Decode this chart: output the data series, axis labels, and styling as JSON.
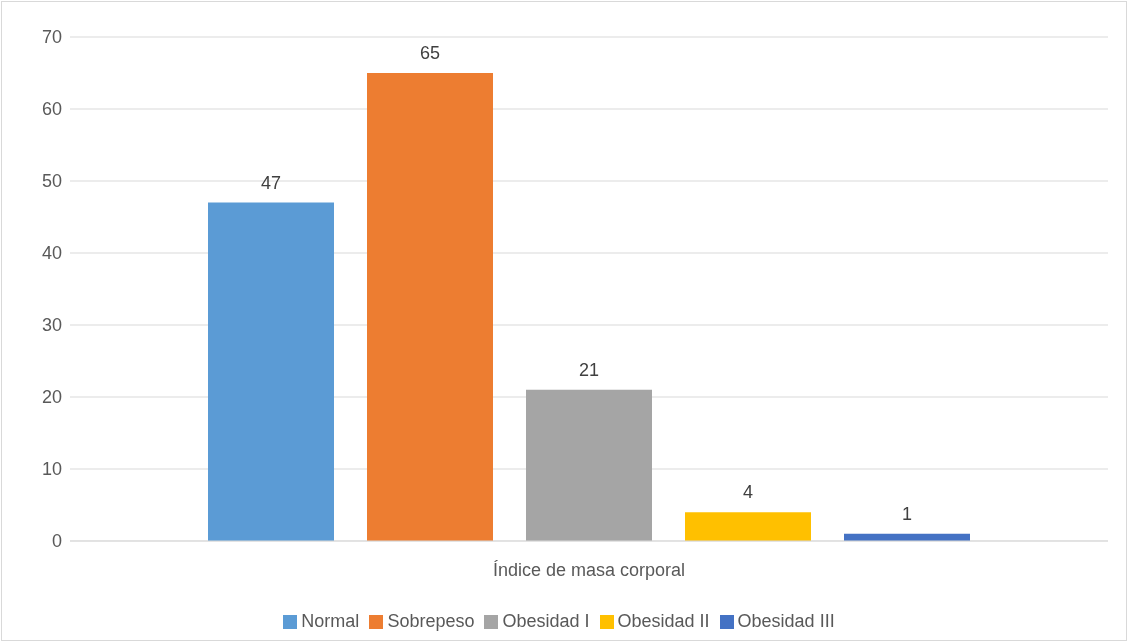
{
  "chart_data": {
    "type": "bar",
    "categories": [
      "Índice de masa corporal"
    ],
    "series": [
      {
        "name": "Normal",
        "color": "#5b9bd5",
        "values": [
          47
        ]
      },
      {
        "name": "Sobrepeso",
        "color": "#ed7d31",
        "values": [
          65
        ]
      },
      {
        "name": "Obesidad I",
        "color": "#a5a5a5",
        "values": [
          21
        ]
      },
      {
        "name": "Obesidad II",
        "color": "#ffc000",
        "values": [
          4
        ]
      },
      {
        "name": "Obesidad III",
        "color": "#4472c4",
        "values": [
          1
        ]
      }
    ],
    "ylim": [
      0,
      70
    ],
    "yticks": [
      0,
      10,
      20,
      30,
      40,
      50,
      60,
      70
    ],
    "grid": "y",
    "legend": "bottom",
    "data_labels": true
  }
}
